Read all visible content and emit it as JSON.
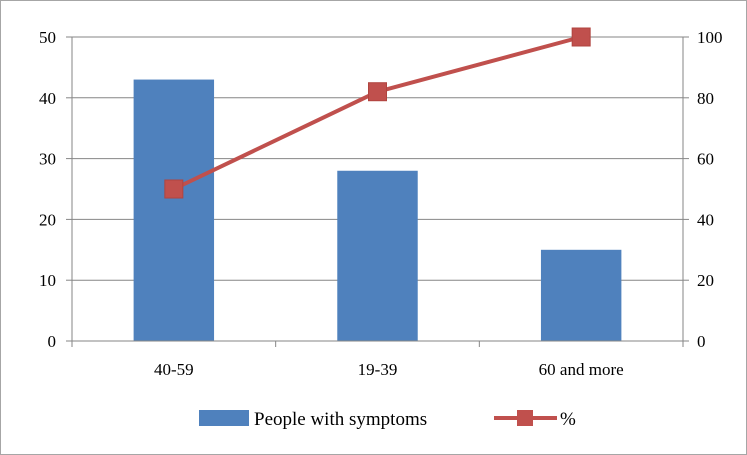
{
  "chart_data": {
    "type": "bar",
    "categories": [
      "40-59",
      "19-39",
      "60 and more"
    ],
    "series": [
      {
        "name": "People with symptoms",
        "type": "bar",
        "axis": "left",
        "color": "#4f81bd",
        "values": [
          43,
          28,
          15
        ]
      },
      {
        "name": "%",
        "type": "line",
        "axis": "right",
        "color": "#c0504d",
        "marker": "square",
        "values": [
          50,
          82,
          100
        ]
      }
    ],
    "y_left": {
      "min": 0,
      "max": 50,
      "ticks": [
        0,
        10,
        20,
        30,
        40,
        50
      ]
    },
    "y_right": {
      "min": 0,
      "max": 100,
      "ticks": [
        0,
        20,
        40,
        60,
        80,
        100
      ]
    },
    "grid": true,
    "legend_position": "bottom"
  }
}
